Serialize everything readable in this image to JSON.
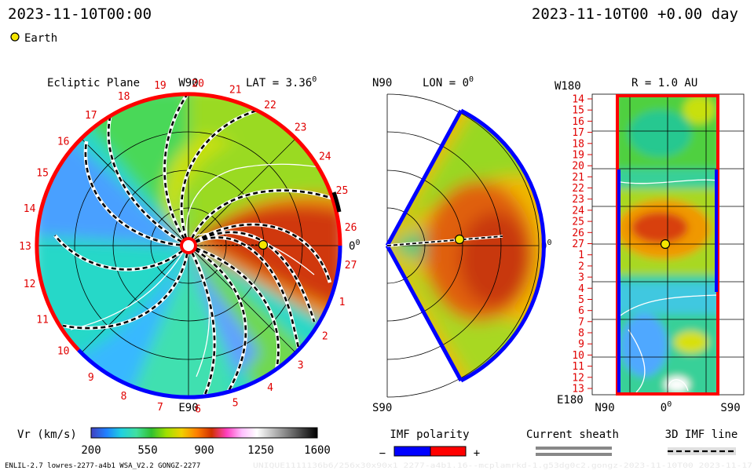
{
  "header": {
    "datetime": "2023-11-10T00:00",
    "elapsed": "2023-11-10T00 +0.00 day"
  },
  "legend_earth": {
    "label": "Earth",
    "color": "#f5e600"
  },
  "colors": {
    "polarity_negative": "#0000ff",
    "polarity_positive": "#ff0000",
    "sheath": "#888888",
    "imf_line": "#000000",
    "grid": "#000000",
    "sector_label": "#e00000"
  },
  "panels": {
    "ecliptic": {
      "title": "Ecliptic Plane",
      "top_label": "W90",
      "bottom_label": "E90",
      "right_label": "0",
      "right_label_sup": "0",
      "lat_label": "LAT = 3.36",
      "lat_sup": "0",
      "sector_labels": [
        "19",
        "20",
        "21",
        "22",
        "23",
        "24",
        "25",
        "26",
        "27",
        "1",
        "2",
        "3",
        "4",
        "5",
        "6",
        "7",
        "8",
        "9",
        "10",
        "11",
        "12",
        "13",
        "14",
        "15",
        "16",
        "17",
        "18"
      ]
    },
    "meridional": {
      "top_label": "N90",
      "bottom_label": "S90",
      "lon_label": "LON = 0",
      "lon_sup": "0",
      "right_label": "0",
      "right_label_sup": "0"
    },
    "synoptic": {
      "r_label": "R = 1.0 AU",
      "top_left_label": "W180",
      "bottom_left_label": "E180",
      "x_labels": [
        "N90",
        "0",
        "S90"
      ],
      "x_label_sup": "0",
      "y_labels": [
        "14",
        "15",
        "16",
        "17",
        "18",
        "19",
        "20",
        "21",
        "22",
        "23",
        "24",
        "25",
        "26",
        "27",
        "1",
        "2",
        "3",
        "4",
        "5",
        "6",
        "7",
        "8",
        "9",
        "10",
        "11",
        "12",
        "13"
      ]
    }
  },
  "colorbar": {
    "label": "Vr (km/s)",
    "ticks": [
      "200",
      "550",
      "900",
      "1250",
      "1600"
    ],
    "tick_values": [
      200,
      550,
      900,
      1250,
      1600
    ],
    "range": [
      200,
      1600
    ],
    "stops": [
      "#4040c0",
      "#2080ff",
      "#20d0e0",
      "#40e0a0",
      "#30c030",
      "#a0e000",
      "#f0d000",
      "#ff8000",
      "#d03000",
      "#ff40c0",
      "#ffc0ff",
      "#ffffff",
      "#c0c0c0",
      "#808080",
      "#404040",
      "#000000"
    ]
  },
  "imf_legend": {
    "title": "IMF polarity",
    "minus": "−",
    "plus": "+"
  },
  "sheath_legend": {
    "title": "Current sheath"
  },
  "imfline_legend": {
    "title": "3D IMF line"
  },
  "footer": {
    "left": "ENLIL-2.7 lowres-2277-a4b1 WSA_V2.2 GONGZ-2277",
    "right": "UNIQUE1111136b6/256x30x90x1 2277-a4b1.16--mcplamrkd-1.g53dg0c2.gongz-2023-11-10T00   2023-11-17"
  },
  "chart_data": {
    "type": "heatmap",
    "title": "",
    "quantity": "Vr (km/s)",
    "value_range": [
      200,
      1600
    ],
    "earth": {
      "name": "Earth",
      "longitude_deg": 0,
      "latitude_deg": 3.36,
      "r_au": 1.0
    },
    "panels": [
      "Ecliptic Plane",
      "LON = 0",
      "R = 1.0 AU"
    ]
  }
}
